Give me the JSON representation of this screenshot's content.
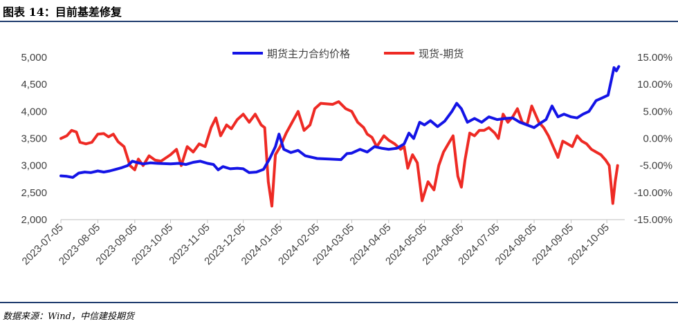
{
  "figure": {
    "title": "图表 14：目前基差修复",
    "source": "数据来源：Wind，中信建投期货"
  },
  "colors": {
    "futures": "#1414e6",
    "basis": "#ee2a24",
    "axis": "#bfbfbf",
    "rule": "#1f3c6e"
  },
  "chart_data": {
    "type": "line",
    "title": "",
    "xlabel": "",
    "ylabel": "",
    "grid": false,
    "legend_position": "top-center",
    "x_ticks": [
      "2023-07-05",
      "2023-08-05",
      "2023-09-05",
      "2023-10-05",
      "2023-11-05",
      "2023-12-05",
      "2024-01-05",
      "2024-02-05",
      "2024-03-05",
      "2024-04-05",
      "2024-05-05",
      "2024-06-05",
      "2024-07-05",
      "2024-08-05",
      "2024-09-05",
      "2024-10-05"
    ],
    "y_left": {
      "ticks": [
        "2,000",
        "2,500",
        "3,000",
        "3,500",
        "4,000",
        "4,500",
        "5,000"
      ],
      "range": [
        2000,
        5000
      ]
    },
    "y_right": {
      "ticks": [
        "-15.00%",
        "-10.00%",
        "-5.00%",
        "0.00%",
        "5.00%",
        "10.00%",
        "15.00%"
      ],
      "range": [
        -15,
        15
      ]
    },
    "series": [
      {
        "name": "期货主力合约价格",
        "axis": "left",
        "points": [
          [
            "2023-07-05",
            2810
          ],
          [
            "2023-07-10",
            2800
          ],
          [
            "2023-07-15",
            2780
          ],
          [
            "2023-07-20",
            2860
          ],
          [
            "2023-07-25",
            2880
          ],
          [
            "2023-07-30",
            2870
          ],
          [
            "2023-08-05",
            2900
          ],
          [
            "2023-08-10",
            2880
          ],
          [
            "2023-08-15",
            2900
          ],
          [
            "2023-08-20",
            2930
          ],
          [
            "2023-08-25",
            2960
          ],
          [
            "2023-08-30",
            3000
          ],
          [
            "2023-09-03",
            3080
          ],
          [
            "2023-09-08",
            3050
          ],
          [
            "2023-09-12",
            3030
          ],
          [
            "2023-09-18",
            3050
          ],
          [
            "2023-09-24",
            3040
          ],
          [
            "2023-10-05",
            3030
          ],
          [
            "2023-10-12",
            3040
          ],
          [
            "2023-10-18",
            3020
          ],
          [
            "2023-10-24",
            3060
          ],
          [
            "2023-10-30",
            3080
          ],
          [
            "2023-11-05",
            3040
          ],
          [
            "2023-11-10",
            3020
          ],
          [
            "2023-11-14",
            2920
          ],
          [
            "2023-11-18",
            2980
          ],
          [
            "2023-11-24",
            2940
          ],
          [
            "2023-11-30",
            2950
          ],
          [
            "2023-12-05",
            2940
          ],
          [
            "2023-12-10",
            2870
          ],
          [
            "2023-12-16",
            2880
          ],
          [
            "2023-12-22",
            2930
          ],
          [
            "2023-12-27",
            3120
          ],
          [
            "2024-01-01",
            3350
          ],
          [
            "2024-01-04",
            3580
          ],
          [
            "2024-01-08",
            3300
          ],
          [
            "2024-01-14",
            3240
          ],
          [
            "2024-01-20",
            3280
          ],
          [
            "2024-01-26",
            3180
          ],
          [
            "2024-02-05",
            3130
          ],
          [
            "2024-02-15",
            3120
          ],
          [
            "2024-02-25",
            3110
          ],
          [
            "2024-03-01",
            3220
          ],
          [
            "2024-03-05",
            3230
          ],
          [
            "2024-03-12",
            3300
          ],
          [
            "2024-03-18",
            3250
          ],
          [
            "2024-03-24",
            3350
          ],
          [
            "2024-03-30",
            3320
          ],
          [
            "2024-04-05",
            3300
          ],
          [
            "2024-04-12",
            3320
          ],
          [
            "2024-04-18",
            3400
          ],
          [
            "2024-04-22",
            3600
          ],
          [
            "2024-04-26",
            3500
          ],
          [
            "2024-05-01",
            3800
          ],
          [
            "2024-05-05",
            3750
          ],
          [
            "2024-05-10",
            3830
          ],
          [
            "2024-05-16",
            3720
          ],
          [
            "2024-05-22",
            3820
          ],
          [
            "2024-05-28",
            4000
          ],
          [
            "2024-06-01",
            4150
          ],
          [
            "2024-06-05",
            4050
          ],
          [
            "2024-06-10",
            3800
          ],
          [
            "2024-06-16",
            3870
          ],
          [
            "2024-06-22",
            3800
          ],
          [
            "2024-06-28",
            3900
          ],
          [
            "2024-07-05",
            3850
          ],
          [
            "2024-07-12",
            3870
          ],
          [
            "2024-07-18",
            3880
          ],
          [
            "2024-07-24",
            3800
          ],
          [
            "2024-07-30",
            3750
          ],
          [
            "2024-08-05",
            3700
          ],
          [
            "2024-08-10",
            3780
          ],
          [
            "2024-08-15",
            3850
          ],
          [
            "2024-08-20",
            4100
          ],
          [
            "2024-08-25",
            3900
          ],
          [
            "2024-08-30",
            3950
          ],
          [
            "2024-09-05",
            3900
          ],
          [
            "2024-09-10",
            3880
          ],
          [
            "2024-09-15",
            3950
          ],
          [
            "2024-09-20",
            4000
          ],
          [
            "2024-09-26",
            4200
          ],
          [
            "2024-10-01",
            4250
          ],
          [
            "2024-10-06",
            4300
          ],
          [
            "2024-10-09",
            4600
          ],
          [
            "2024-10-11",
            4810
          ],
          [
            "2024-10-13",
            4750
          ],
          [
            "2024-10-15",
            4830
          ]
        ]
      },
      {
        "name": "现货-期货",
        "axis": "right",
        "points": [
          [
            "2023-07-05",
            0.0
          ],
          [
            "2023-07-10",
            0.5
          ],
          [
            "2023-07-14",
            1.5
          ],
          [
            "2023-07-18",
            1.2
          ],
          [
            "2023-07-21",
            -0.7
          ],
          [
            "2023-07-26",
            -1.0
          ],
          [
            "2023-07-31",
            -0.7
          ],
          [
            "2023-08-05",
            0.8
          ],
          [
            "2023-08-10",
            0.9
          ],
          [
            "2023-08-14",
            0.3
          ],
          [
            "2023-08-18",
            0.8
          ],
          [
            "2023-08-22",
            -0.6
          ],
          [
            "2023-08-27",
            -1.5
          ],
          [
            "2023-09-01",
            -5.0
          ],
          [
            "2023-09-05",
            -5.8
          ],
          [
            "2023-09-08",
            -3.8
          ],
          [
            "2023-09-12",
            -5.0
          ],
          [
            "2023-09-17",
            -3.2
          ],
          [
            "2023-09-22",
            -4.0
          ],
          [
            "2023-09-27",
            -4.2
          ],
          [
            "2023-10-05",
            -3.0
          ],
          [
            "2023-10-10",
            -2.0
          ],
          [
            "2023-10-14",
            -5.0
          ],
          [
            "2023-10-19",
            -1.5
          ],
          [
            "2023-10-24",
            -2.5
          ],
          [
            "2023-10-29",
            -1.0
          ],
          [
            "2023-11-03",
            -1.5
          ],
          [
            "2023-11-08",
            2.0
          ],
          [
            "2023-11-12",
            3.8
          ],
          [
            "2023-11-16",
            0.5
          ],
          [
            "2023-11-21",
            2.5
          ],
          [
            "2023-11-25",
            1.8
          ],
          [
            "2023-11-30",
            3.5
          ],
          [
            "2023-12-05",
            4.5
          ],
          [
            "2023-12-10",
            3.0
          ],
          [
            "2023-12-15",
            4.5
          ],
          [
            "2023-12-20",
            2.5
          ],
          [
            "2023-12-23",
            2.0
          ],
          [
            "2023-12-26",
            -8.0
          ],
          [
            "2023-12-29",
            -12.5
          ],
          [
            "2024-01-01",
            -3.0
          ],
          [
            "2024-01-05",
            -1.5
          ],
          [
            "2024-01-10",
            1.0
          ],
          [
            "2024-01-15",
            3.0
          ],
          [
            "2024-01-20",
            5.0
          ],
          [
            "2024-01-25",
            1.5
          ],
          [
            "2024-01-30",
            2.5
          ],
          [
            "2024-02-03",
            5.5
          ],
          [
            "2024-02-08",
            6.5
          ],
          [
            "2024-02-18",
            6.3
          ],
          [
            "2024-02-23",
            6.8
          ],
          [
            "2024-02-29",
            5.5
          ],
          [
            "2024-03-05",
            5.0
          ],
          [
            "2024-03-10",
            3.0
          ],
          [
            "2024-03-15",
            2.0
          ],
          [
            "2024-03-18",
            0.8
          ],
          [
            "2024-03-22",
            0.2
          ],
          [
            "2024-03-26",
            -1.5
          ],
          [
            "2024-04-01",
            0.5
          ],
          [
            "2024-04-05",
            -0.3
          ],
          [
            "2024-04-10",
            -1.0
          ],
          [
            "2024-04-15",
            -2.0
          ],
          [
            "2024-04-18",
            -1.5
          ],
          [
            "2024-04-21",
            -5.5
          ],
          [
            "2024-04-25",
            -3.0
          ],
          [
            "2024-04-29",
            -4.5
          ],
          [
            "2024-05-03",
            -11.5
          ],
          [
            "2024-05-08",
            -8.0
          ],
          [
            "2024-05-13",
            -9.5
          ],
          [
            "2024-05-17",
            -5.0
          ],
          [
            "2024-05-21",
            -2.5
          ],
          [
            "2024-05-25",
            -1.0
          ],
          [
            "2024-05-29",
            0.5
          ],
          [
            "2024-06-02",
            -7.0
          ],
          [
            "2024-06-05",
            -9.0
          ],
          [
            "2024-06-08",
            -4.0
          ],
          [
            "2024-06-12",
            1.0
          ],
          [
            "2024-06-16",
            0.5
          ],
          [
            "2024-06-20",
            1.5
          ],
          [
            "2024-06-24",
            1.5
          ],
          [
            "2024-06-28",
            2.0
          ],
          [
            "2024-07-03",
            1.0
          ],
          [
            "2024-07-06",
            0.0
          ],
          [
            "2024-07-10",
            4.5
          ],
          [
            "2024-07-14",
            3.0
          ],
          [
            "2024-07-18",
            4.0
          ],
          [
            "2024-07-22",
            5.5
          ],
          [
            "2024-07-26",
            3.0
          ],
          [
            "2024-07-30",
            2.5
          ],
          [
            "2024-08-03",
            6.0
          ],
          [
            "2024-08-06",
            4.5
          ],
          [
            "2024-08-09",
            3.0
          ],
          [
            "2024-08-13",
            2.0
          ],
          [
            "2024-08-17",
            0.5
          ],
          [
            "2024-08-21",
            -1.5
          ],
          [
            "2024-08-25",
            -3.5
          ],
          [
            "2024-08-29",
            -0.5
          ],
          [
            "2024-09-02",
            -1.0
          ],
          [
            "2024-09-06",
            -1.5
          ],
          [
            "2024-09-10",
            0.5
          ],
          [
            "2024-09-14",
            -0.5
          ],
          [
            "2024-09-18",
            -1.0
          ],
          [
            "2024-09-22",
            -2.0
          ],
          [
            "2024-09-26",
            -2.5
          ],
          [
            "2024-09-30",
            -3.0
          ],
          [
            "2024-10-04",
            -4.0
          ],
          [
            "2024-10-07",
            -5.0
          ],
          [
            "2024-10-10",
            -12.0
          ],
          [
            "2024-10-12",
            -8.0
          ],
          [
            "2024-10-14",
            -5.0
          ]
        ]
      }
    ]
  }
}
